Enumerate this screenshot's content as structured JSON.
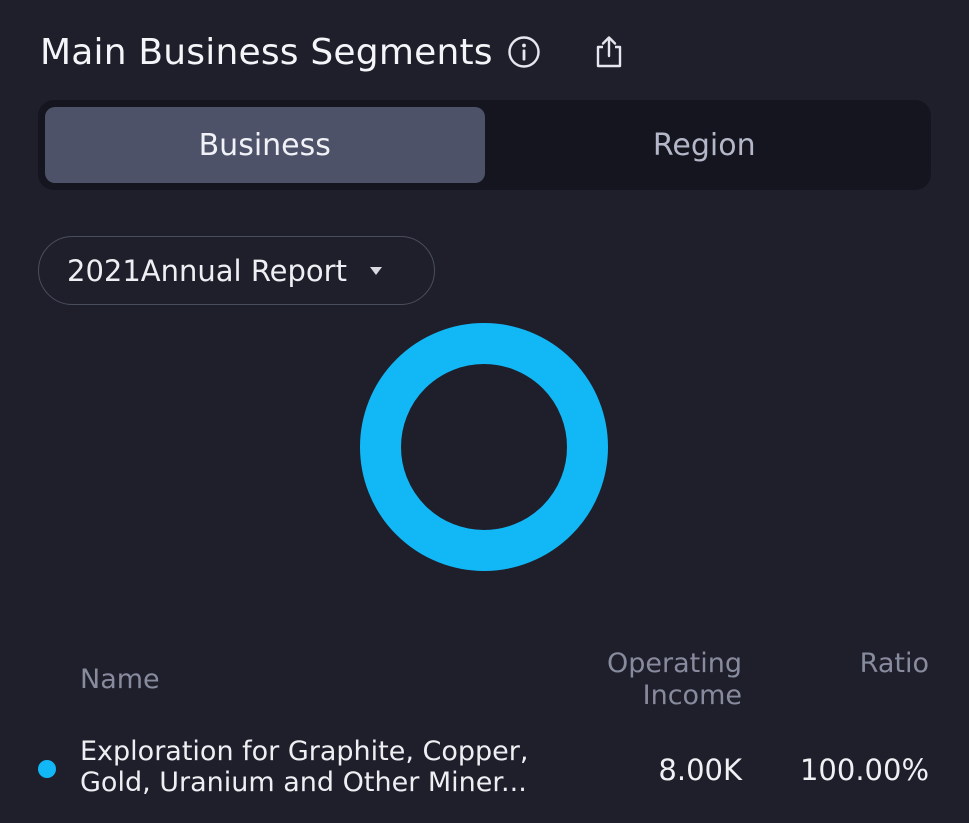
{
  "header": {
    "title": "Main Business Segments",
    "info_icon": "info-icon",
    "share_icon": "share-icon"
  },
  "segmented": {
    "tabs": [
      {
        "label": "Business",
        "active": true
      },
      {
        "label": "Region",
        "active": false
      }
    ]
  },
  "report_select": {
    "value": "2021Annual Report",
    "icon": "caret-down-icon"
  },
  "chart_data": {
    "type": "pie",
    "donut": true,
    "categories": [
      "Exploration for Graphite, Copper, Gold, Uranium and Other Miner..."
    ],
    "values": [
      100.0
    ],
    "colors": [
      "#12b7f5"
    ]
  },
  "table": {
    "columns": {
      "name": "Name",
      "income": "Operating Income",
      "ratio": "Ratio"
    },
    "rows": [
      {
        "name": "Exploration for Graphite, Copper, Gold, Uranium and Other Miner...",
        "income": "8.00K",
        "ratio": "100.00%",
        "color": "#12b7f5"
      }
    ]
  }
}
